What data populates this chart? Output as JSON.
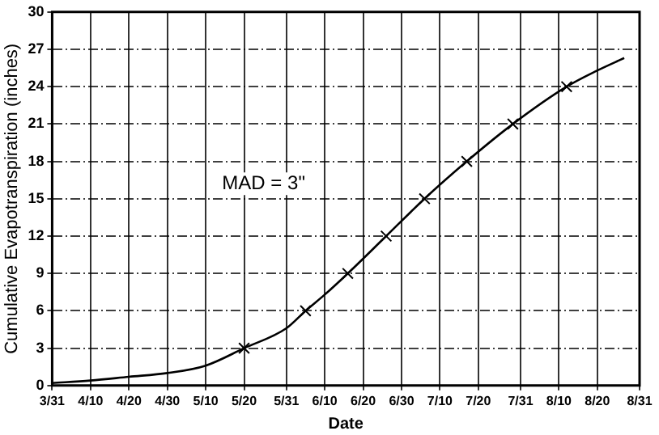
{
  "chart_data": {
    "type": "line",
    "xlabel": "Date",
    "ylabel": "Cumulative Evapotranspiration (inches)",
    "annotations": [
      "MAD = 3\""
    ],
    "series": [
      {
        "type": "line",
        "color": "#000000",
        "marker": "none",
        "x": [
          "--03-31",
          "--04-10",
          "--04-20",
          "--04-30",
          "--05-10",
          "--05-20",
          "--05-31",
          "--06-05",
          "--06-10",
          "--06-16",
          "--06-26",
          "--07-06",
          "--07-17",
          "--07-29",
          "--08-12",
          "--08-20",
          "--08-27"
        ],
        "values": [
          0.2,
          0.4,
          0.7,
          1.0,
          1.6,
          3,
          4.6,
          6,
          7.3,
          9,
          12,
          15,
          18,
          21,
          24,
          25.3,
          26.3
        ]
      },
      {
        "type": "scatter",
        "color": "#000000",
        "marker": "cross",
        "x": [
          "--05-20",
          "--06-05",
          "--06-16",
          "--06-26",
          "--07-06",
          "--07-17",
          "--07-29",
          "--08-12"
        ],
        "values": [
          3,
          6,
          9,
          12,
          15,
          18,
          21,
          24
        ]
      }
    ],
    "xlim": [
      "--03-31",
      "--08-31"
    ],
    "xticks": [
      {
        "value": "--03-31",
        "label": "3/31"
      },
      {
        "value": "--04-10",
        "label": "4/10"
      },
      {
        "value": "--04-20",
        "label": "4/20"
      },
      {
        "value": "--04-30",
        "label": "4/30"
      },
      {
        "value": "--05-10",
        "label": "5/10"
      },
      {
        "value": "--05-20",
        "label": "5/20"
      },
      {
        "value": "--05-31",
        "label": "5/31"
      },
      {
        "value": "--06-10",
        "label": "6/10"
      },
      {
        "value": "--06-20",
        "label": "6/20"
      },
      {
        "value": "--06-30",
        "label": "6/30"
      },
      {
        "value": "--07-10",
        "label": "7/10"
      },
      {
        "value": "--07-20",
        "label": "7/20"
      },
      {
        "value": "--07-31",
        "label": "7/31"
      },
      {
        "value": "--08-10",
        "label": "8/10"
      },
      {
        "value": "--08-20",
        "label": "8/20"
      },
      {
        "value": "--08-31",
        "label": "8/31"
      }
    ],
    "ylim": [
      0,
      30
    ],
    "yticks": [
      0,
      3,
      6,
      9,
      12,
      15,
      18,
      21,
      24,
      27,
      30
    ],
    "grid": true,
    "legend": false
  }
}
